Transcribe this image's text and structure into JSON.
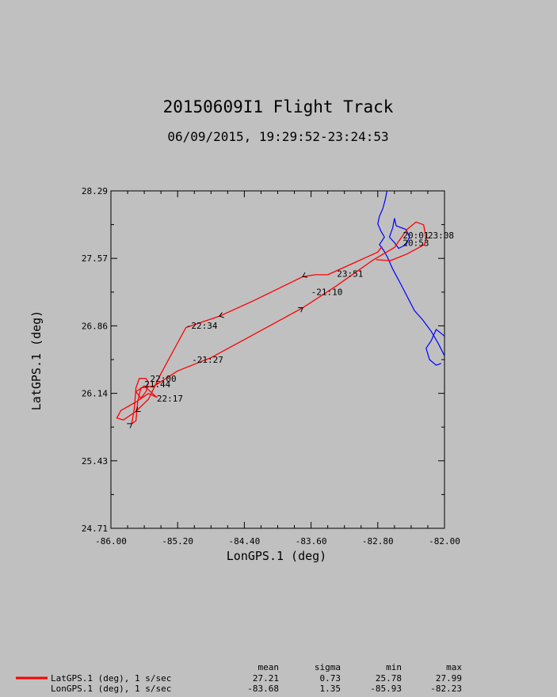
{
  "chart_data": {
    "type": "line",
    "title": "20150609I1 Flight Track",
    "subtitle": "06/09/2015, 19:29:52-23:24:53",
    "xlabel": "LonGPS.1 (deg)",
    "ylabel": "LatGPS.1 (deg)",
    "xlim": [
      -86.0,
      -82.0
    ],
    "ylim": [
      24.71,
      28.29
    ],
    "xticks": [
      "-86.00",
      "-85.20",
      "-84.40",
      "-83.60",
      "-82.80",
      "-82.00"
    ],
    "yticks": [
      "24.71",
      "25.43",
      "26.14",
      "26.86",
      "27.57",
      "28.29"
    ],
    "grid": false,
    "colors": {
      "track": "#ff0000",
      "coast": "#0000ff",
      "ink": "#000000",
      "background": "#c0c0c0"
    },
    "series": [
      {
        "name": "Flight track",
        "points": [
          [
            -82.75,
            27.7
          ],
          [
            -82.8,
            27.64
          ],
          [
            -83.1,
            27.52
          ],
          [
            -83.4,
            27.4
          ],
          [
            -83.55,
            27.4
          ],
          [
            -83.7,
            27.38
          ],
          [
            -84.0,
            27.25
          ],
          [
            -84.3,
            27.12
          ],
          [
            -84.7,
            26.96
          ],
          [
            -85.1,
            26.84
          ],
          [
            -85.4,
            26.35
          ],
          [
            -85.55,
            26.08
          ],
          [
            -85.7,
            25.95
          ],
          [
            -85.85,
            25.86
          ],
          [
            -85.93,
            25.88
          ],
          [
            -85.88,
            25.96
          ],
          [
            -85.7,
            26.05
          ],
          [
            -85.55,
            26.14
          ],
          [
            -85.45,
            26.1
          ],
          [
            -85.6,
            26.22
          ],
          [
            -85.7,
            26.16
          ],
          [
            -85.64,
            26.09
          ],
          [
            -85.58,
            26.16
          ],
          [
            -85.55,
            26.26
          ],
          [
            -85.58,
            26.3
          ],
          [
            -85.66,
            26.3
          ],
          [
            -85.7,
            26.2
          ],
          [
            -85.72,
            25.98
          ],
          [
            -85.75,
            25.82
          ],
          [
            -85.7,
            25.85
          ],
          [
            -85.68,
            26.05
          ],
          [
            -85.64,
            26.2
          ],
          [
            -85.48,
            26.22
          ],
          [
            -85.2,
            26.38
          ],
          [
            -84.8,
            26.52
          ],
          [
            -84.3,
            26.76
          ],
          [
            -83.7,
            27.05
          ],
          [
            -83.3,
            27.28
          ],
          [
            -82.85,
            27.56
          ],
          [
            -82.6,
            27.69
          ],
          [
            -82.45,
            27.88
          ],
          [
            -82.34,
            27.96
          ],
          [
            -82.25,
            27.93
          ],
          [
            -82.22,
            27.78
          ],
          [
            -82.24,
            27.72
          ],
          [
            -82.45,
            27.62
          ],
          [
            -82.65,
            27.55
          ],
          [
            -82.82,
            27.56
          ]
        ]
      }
    ],
    "time_labels": [
      {
        "text": "-22:34",
        "lon": -85.1,
        "lat": 26.86
      },
      {
        "text": "-21:27",
        "lon": -85.03,
        "lat": 26.5
      },
      {
        "text": "-21:10",
        "lon": -83.6,
        "lat": 27.22
      },
      {
        "text": "22:00",
        "lon": -85.53,
        "lat": 26.3
      },
      {
        "text": "21:44",
        "lon": -85.6,
        "lat": 26.24
      },
      {
        "text": "22:17",
        "lon": -85.45,
        "lat": 26.09
      },
      {
        "text": "23:51",
        "lon": -83.29,
        "lat": 27.41
      },
      {
        "text": "20:53",
        "lon": -82.5,
        "lat": 27.74
      },
      {
        "text": "20:01",
        "lon": -82.5,
        "lat": 27.82
      },
      {
        "text": "23:08",
        "lon": -82.2,
        "lat": 27.82
      }
    ],
    "legend": {
      "headers": [
        "mean",
        "sigma",
        "min",
        "max"
      ],
      "rows": [
        {
          "label": "LatGPS.1 (deg), 1 s/sec",
          "values": [
            "27.21",
            "0.73",
            "25.78",
            "27.99"
          ],
          "color": "#ff0000"
        },
        {
          "label": "LonGPS.1 (deg), 1 s/sec",
          "values": [
            "-83.68",
            "1.35",
            "-85.93",
            "-82.23"
          ],
          "color": "#ff0000"
        }
      ]
    }
  }
}
